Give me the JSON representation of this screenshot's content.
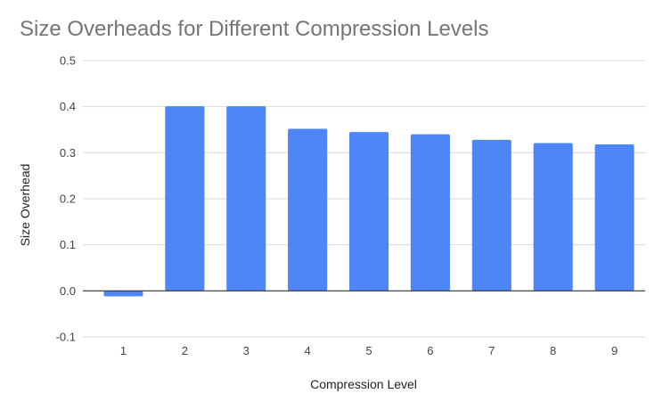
{
  "chart_data": {
    "type": "bar",
    "title": "Size Overheads for Different Compression Levels",
    "xlabel": "Compression Level",
    "ylabel": "Size Overhead",
    "categories": [
      "1",
      "2",
      "3",
      "4",
      "5",
      "6",
      "7",
      "8",
      "9"
    ],
    "series": [
      {
        "values": [
          -0.012,
          0.401,
          0.401,
          0.352,
          0.345,
          0.34,
          0.328,
          0.321,
          0.318
        ],
        "color": "#4f86f7"
      }
    ],
    "ylim": [
      -0.1,
      0.5
    ],
    "yticks": [
      "-0.1",
      "0.0",
      "0.1",
      "0.2",
      "0.3",
      "0.4",
      "0.5"
    ],
    "grid": true,
    "legend": "none"
  }
}
